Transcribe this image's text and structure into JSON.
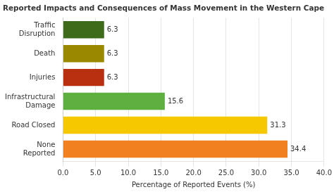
{
  "chart_data": {
    "type": "bar",
    "orientation": "horizontal",
    "title": "Reported Impacts and Consequences of Mass Movement in the Western Cape",
    "xlabel": "Percentage of Reported Events (%)",
    "categories": [
      "None\nReported",
      "Road Closed",
      "Infrastructural\nDamage",
      "Injuries",
      "Death",
      "Traffic\nDisruption"
    ],
    "values": [
      34.4,
      31.3,
      15.6,
      6.3,
      6.3,
      6.3
    ],
    "colors": [
      "#F08020",
      "#F6C800",
      "#5DB040",
      "#B83010",
      "#9A8800",
      "#3D6B1A"
    ],
    "xlim": [
      0,
      40.0
    ],
    "xticks": [
      {
        "value": 0,
        "label": "0.0"
      },
      {
        "value": 5,
        "label": "5.0"
      },
      {
        "value": 10,
        "label": "10.0"
      },
      {
        "value": 15,
        "label": "15.0"
      },
      {
        "value": 20,
        "label": "20.0"
      },
      {
        "value": 25,
        "label": "25.0"
      },
      {
        "value": 30,
        "label": "30.0"
      },
      {
        "value": 35,
        "label": "35.0"
      },
      {
        "value": 40,
        "label": "40.0"
      }
    ],
    "grid": true,
    "data_labels": true
  }
}
